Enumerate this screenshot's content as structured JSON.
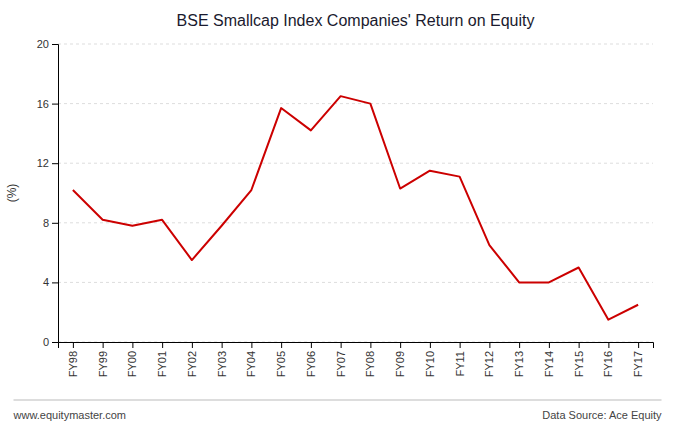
{
  "chart_data": {
    "type": "line",
    "title": "BSE Smallcap Index Companies' Return on Equity",
    "ylabel": "(%)",
    "annotations": [
      "www.equitymaster.com",
      "Data Source: Ace Equity"
    ],
    "categories": [
      "FY98",
      "FY99",
      "FY00",
      "FY01",
      "FY02",
      "FY03",
      "FY04",
      "FY05",
      "FY06",
      "FY07",
      "FY08",
      "FY09",
      "FY10",
      "FY11",
      "FY12",
      "FY13",
      "FY14",
      "FY15",
      "FY16",
      "FY17"
    ],
    "values": [
      10.2,
      8.2,
      7.8,
      8.2,
      5.5,
      7.8,
      10.2,
      15.7,
      14.2,
      16.5,
      16.0,
      10.3,
      11.5,
      11.1,
      6.5,
      4.0,
      4.0,
      5.0,
      1.5,
      2.5
    ],
    "color": "#cc0000",
    "ylim": [
      0,
      20
    ],
    "yticks": [
      0,
      4,
      8,
      12,
      16,
      20
    ],
    "grid": true
  }
}
